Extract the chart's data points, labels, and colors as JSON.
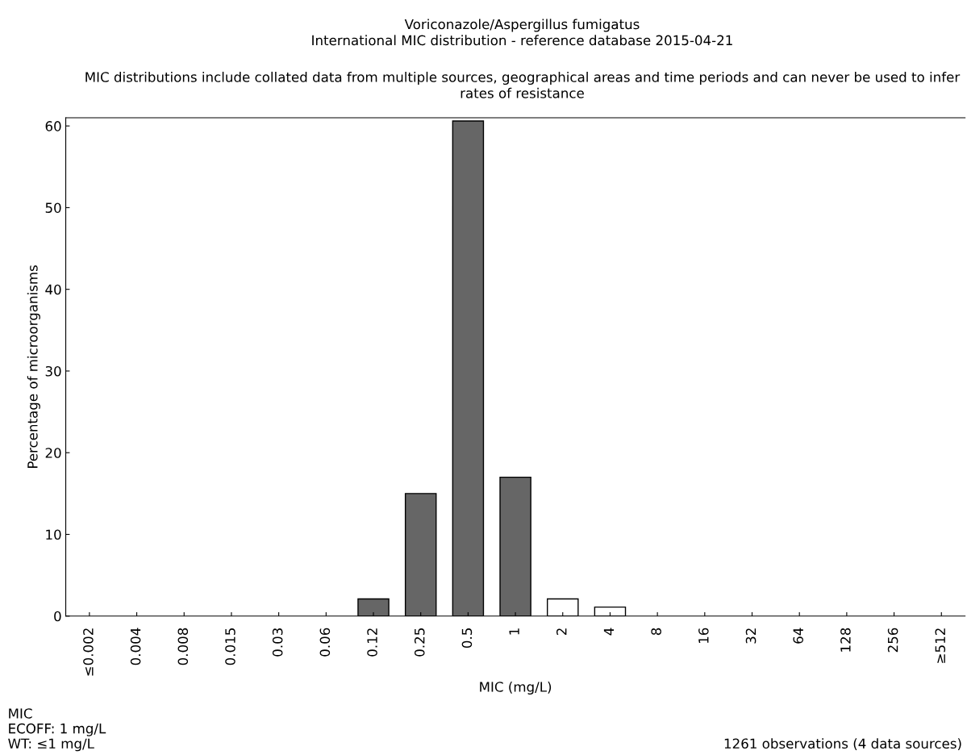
{
  "chart_data": {
    "type": "bar",
    "title": "Voriconazole/Aspergillus fumigatus\nInternational MIC distribution - reference database 2015-04-21",
    "subtitle": "MIC distributions include collated data from multiple sources, geographical areas and time periods and can never be used to infer rates of resistance",
    "xlabel": "MIC (mg/L)",
    "ylabel": "Percentage of microorganisms",
    "categories": [
      "≤0.002",
      "0.004",
      "0.008",
      "0.015",
      "0.03",
      "0.06",
      "0.12",
      "0.25",
      "0.5",
      "1",
      "2",
      "4",
      "8",
      "16",
      "32",
      "64",
      "128",
      "256",
      "≥512"
    ],
    "values": [
      0,
      0,
      0,
      0,
      0,
      0,
      2.1,
      15.0,
      60.6,
      17.0,
      2.1,
      1.1,
      0,
      0,
      0,
      0,
      0,
      0,
      0
    ],
    "colors": [
      "#666666",
      "#666666",
      "#666666",
      "#666666",
      "#666666",
      "#666666",
      "#666666",
      "#666666",
      "#666666",
      "#666666",
      "#ffffff",
      "#ffffff",
      "#ffffff",
      "#ffffff",
      "#ffffff",
      "#ffffff",
      "#ffffff",
      "#ffffff",
      "#ffffff"
    ],
    "ylim": [
      0,
      61
    ],
    "yticks": [
      0,
      10,
      20,
      30,
      40,
      50,
      60
    ],
    "grid": false,
    "legend": false,
    "annotations": [
      "MIC\nECOFF: 1 mg/L\nWT: ≤1 mg/L",
      "1261 observations (4 data sources)"
    ]
  }
}
